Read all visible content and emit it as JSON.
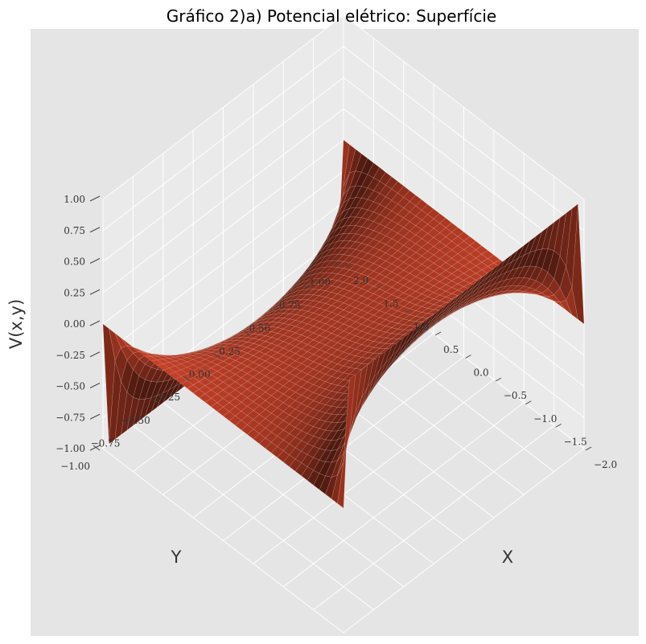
{
  "chart_data": {
    "type": "surface3d",
    "title": "Gráfico 2)a) Potencial elétrico: Superfície",
    "xlabel": "X",
    "ylabel": "Y",
    "zlabel": "V(x,y)",
    "xlim": [
      -2,
      2
    ],
    "ylim": [
      -1,
      1
    ],
    "zlim": [
      -1,
      1
    ],
    "xticks": [
      "−2.0",
      "−1.5",
      "−1.0",
      "−0.5",
      "0.0",
      "0.5",
      "1.0",
      "1.5",
      "2.0"
    ],
    "yticks": [
      "−1.00",
      "−0.75",
      "−0.50",
      "−0.25",
      "0.00",
      "0.25",
      "0.50",
      "0.75",
      "1.00"
    ],
    "zticks": [
      "−1.00",
      "−0.75",
      "−0.50",
      "−0.25",
      "0.00",
      "0.25",
      "0.50",
      "0.75",
      "1.00"
    ],
    "surface": {
      "boundary": {
        "x=-2": 1,
        "x=2": -1,
        "y=-1": 0,
        "y=1": 0
      },
      "grid": [
        41,
        41
      ]
    },
    "colors": {
      "surface": "#e04a2e",
      "pane": "#e5e5e5",
      "grid": "#ffffff"
    }
  }
}
